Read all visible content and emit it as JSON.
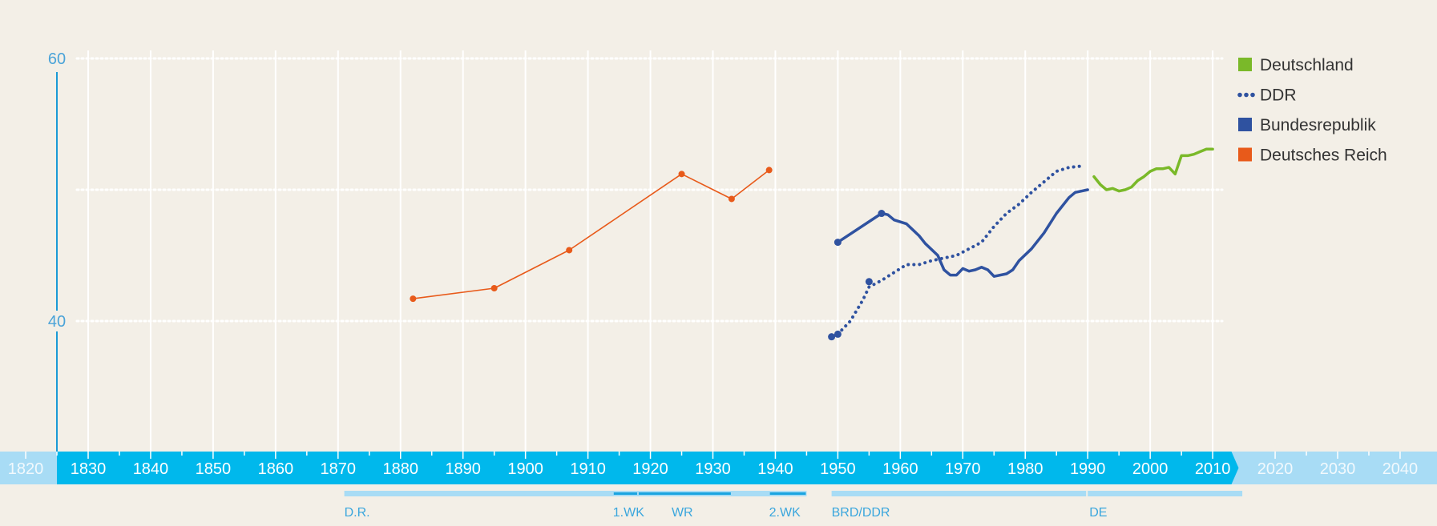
{
  "chart_data": {
    "type": "line",
    "x_range": [
      1815,
      2046
    ],
    "y_range": [
      20,
      64
    ],
    "yticks": [
      40,
      60
    ],
    "xticks": [
      1820,
      1830,
      1840,
      1850,
      1860,
      1870,
      1880,
      1890,
      1900,
      1910,
      1920,
      1930,
      1940,
      1950,
      1960,
      1970,
      1980,
      1990,
      2000,
      2010,
      2020,
      2030,
      2040
    ],
    "grid": true,
    "legend_position": "top-right",
    "series": [
      {
        "name": "Deutschland",
        "color": "#7ab929",
        "style": "solid",
        "points": [
          [
            1991,
            51.0
          ],
          [
            1992,
            50.4
          ],
          [
            1993,
            50.0
          ],
          [
            1994,
            50.1
          ],
          [
            1995,
            49.9
          ],
          [
            1996,
            50.0
          ],
          [
            1997,
            50.2
          ],
          [
            1998,
            50.7
          ],
          [
            1999,
            51.0
          ],
          [
            2000,
            51.4
          ],
          [
            2001,
            51.6
          ],
          [
            2002,
            51.6
          ],
          [
            2003,
            51.7
          ],
          [
            2004,
            51.2
          ],
          [
            2005,
            52.6
          ],
          [
            2006,
            52.6
          ],
          [
            2007,
            52.7
          ],
          [
            2008,
            52.9
          ],
          [
            2009,
            53.1
          ],
          [
            2010,
            53.1
          ]
        ]
      },
      {
        "name": "DDR",
        "color": "#2f52a0",
        "style": "dotted",
        "points": [
          [
            1950,
            39.0
          ],
          [
            1952,
            40.0
          ],
          [
            1954,
            41.6
          ],
          [
            1955,
            42.6
          ],
          [
            1957,
            43.1
          ],
          [
            1959,
            43.7
          ],
          [
            1961,
            44.3
          ],
          [
            1963,
            44.3
          ],
          [
            1965,
            44.6
          ],
          [
            1967,
            44.8
          ],
          [
            1969,
            45.0
          ],
          [
            1971,
            45.5
          ],
          [
            1973,
            46.0
          ],
          [
            1975,
            47.2
          ],
          [
            1977,
            48.2
          ],
          [
            1979,
            48.9
          ],
          [
            1981,
            49.8
          ],
          [
            1983,
            50.6
          ],
          [
            1985,
            51.4
          ],
          [
            1987,
            51.7
          ],
          [
            1989,
            51.8
          ]
        ]
      },
      {
        "name": "Bundesrepublik",
        "color": "#2f52a0",
        "style": "solid",
        "points": [
          [
            1950,
            46.0
          ],
          [
            1957,
            48.2
          ],
          [
            1958,
            48.1
          ],
          [
            1959,
            47.7
          ],
          [
            1961,
            47.4
          ],
          [
            1963,
            46.5
          ],
          [
            1964,
            45.9
          ],
          [
            1966,
            45.0
          ],
          [
            1967,
            43.9
          ],
          [
            1968,
            43.5
          ],
          [
            1969,
            43.5
          ],
          [
            1970,
            44.0
          ],
          [
            1971,
            43.8
          ],
          [
            1972,
            43.9
          ],
          [
            1973,
            44.1
          ],
          [
            1974,
            43.9
          ],
          [
            1975,
            43.4
          ],
          [
            1977,
            43.6
          ],
          [
            1978,
            43.9
          ],
          [
            1979,
            44.6
          ],
          [
            1981,
            45.5
          ],
          [
            1983,
            46.7
          ],
          [
            1985,
            48.2
          ],
          [
            1987,
            49.4
          ],
          [
            1988,
            49.8
          ],
          [
            1990,
            50.0
          ]
        ]
      },
      {
        "name": "Deutsches Reich",
        "color": "#e85a1a",
        "style": "solid",
        "markers": true,
        "points": [
          [
            1882,
            41.7
          ],
          [
            1895,
            42.5
          ],
          [
            1907,
            45.4
          ],
          [
            1925,
            51.2
          ],
          [
            1933,
            49.3
          ],
          [
            1939,
            51.5
          ]
        ]
      }
    ],
    "extra_markers": [
      {
        "series": "Bundesrepublik",
        "points": [
          [
            1949,
            38.8
          ],
          [
            1950,
            39.0
          ],
          [
            1950,
            46.0
          ],
          [
            1957,
            48.2
          ]
        ]
      },
      {
        "series": "DDR",
        "points": [
          [
            1955,
            43.0
          ]
        ]
      }
    ],
    "periods": [
      {
        "label": "D.R.",
        "start": 1871,
        "end": 1945
      },
      {
        "label": "1.WK",
        "start": 1914,
        "end": 1918
      },
      {
        "label": "WR",
        "start": 1918,
        "end": 1933
      },
      {
        "label": "2.WK",
        "start": 1939,
        "end": 1945
      },
      {
        "label": "BRD/DDR",
        "start": 1949,
        "end": 1990
      },
      {
        "label": "DE",
        "start": 1990,
        "end": 2015
      }
    ]
  },
  "colors": {
    "background": "#f3efe7",
    "axis_band": "#00b8ec",
    "axis_band_faded": "#a8dcf5",
    "period_bar": "#a8dcf5",
    "period_bar_dark": "#1aa4e0",
    "ytick_color": "#4aa3d8"
  }
}
